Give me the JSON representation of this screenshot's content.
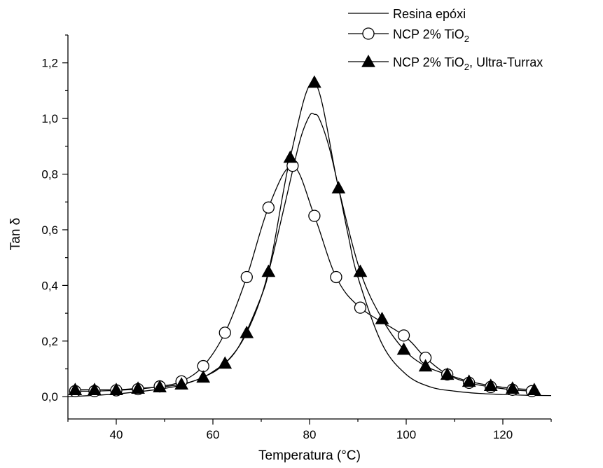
{
  "chart_data": {
    "type": "line",
    "xlabel": "Temperatura (°C)",
    "ylabel": "Tan δ",
    "xlim": [
      30,
      130
    ],
    "ylim": [
      -0.08,
      1.3
    ],
    "xticks": [
      40,
      60,
      80,
      100,
      120
    ],
    "xtick_labels": [
      "40",
      "60",
      "80",
      "100",
      "120"
    ],
    "yticks": [
      0.0,
      0.2,
      0.4,
      0.6,
      0.8,
      1.0,
      1.2
    ],
    "ytick_labels": [
      "0,0",
      "0,2",
      "0,4",
      "0,6",
      "0,8",
      "1,0",
      "1,2"
    ],
    "grid": false,
    "legend_position": "top-right",
    "series": [
      {
        "name": "Resina epóxi",
        "marker": "none",
        "x": [
          30,
          40,
          50,
          55,
          60,
          65,
          70,
          72,
          75,
          78,
          80,
          81,
          82,
          84,
          86,
          88,
          90,
          95,
          100,
          105,
          110,
          115,
          120,
          125,
          130
        ],
        "y": [
          0.0,
          0.01,
          0.03,
          0.05,
          0.09,
          0.17,
          0.36,
          0.48,
          0.7,
          0.92,
          1.01,
          1.015,
          1.0,
          0.9,
          0.75,
          0.58,
          0.43,
          0.19,
          0.08,
          0.035,
          0.02,
          0.012,
          0.008,
          0.005,
          0.004
        ]
      },
      {
        "name": "NCP 2% TiO2",
        "marker": "circle",
        "x": [
          31.5,
          35.5,
          40,
          44.5,
          49,
          53.5,
          58,
          62.5,
          67,
          71.5,
          76.5,
          81,
          85.5,
          90.5,
          99.5,
          104,
          108.5,
          113,
          117.5,
          122,
          126
        ],
        "y": [
          0.02,
          0.02,
          0.023,
          0.027,
          0.037,
          0.055,
          0.11,
          0.23,
          0.43,
          0.68,
          0.83,
          0.65,
          0.43,
          0.32,
          0.22,
          0.14,
          0.08,
          0.05,
          0.035,
          0.025,
          0.02
        ]
      },
      {
        "name": "NCP 2% TiO2, Ultra-Turrax",
        "marker": "triangle",
        "x": [
          31.5,
          35.5,
          40,
          44.5,
          49,
          53.5,
          58,
          62.5,
          67,
          71.5,
          76,
          81,
          86,
          90.5,
          95,
          99.5,
          104,
          108.5,
          113,
          117.5,
          122,
          126.5
        ],
        "y": [
          0.025,
          0.025,
          0.025,
          0.03,
          0.035,
          0.045,
          0.07,
          0.12,
          0.23,
          0.45,
          0.86,
          1.13,
          0.75,
          0.45,
          0.28,
          0.17,
          0.11,
          0.08,
          0.055,
          0.04,
          0.03,
          0.025
        ]
      }
    ],
    "legend": {
      "entries": [
        {
          "prefix": "Resina epóxi",
          "sub": "",
          "suffix": ""
        },
        {
          "prefix": "NCP 2% TiO",
          "sub": "2",
          "suffix": ""
        },
        {
          "prefix": "NCP 2% TiO",
          "sub": "2",
          "suffix": ", Ultra-Turrax"
        }
      ]
    }
  }
}
